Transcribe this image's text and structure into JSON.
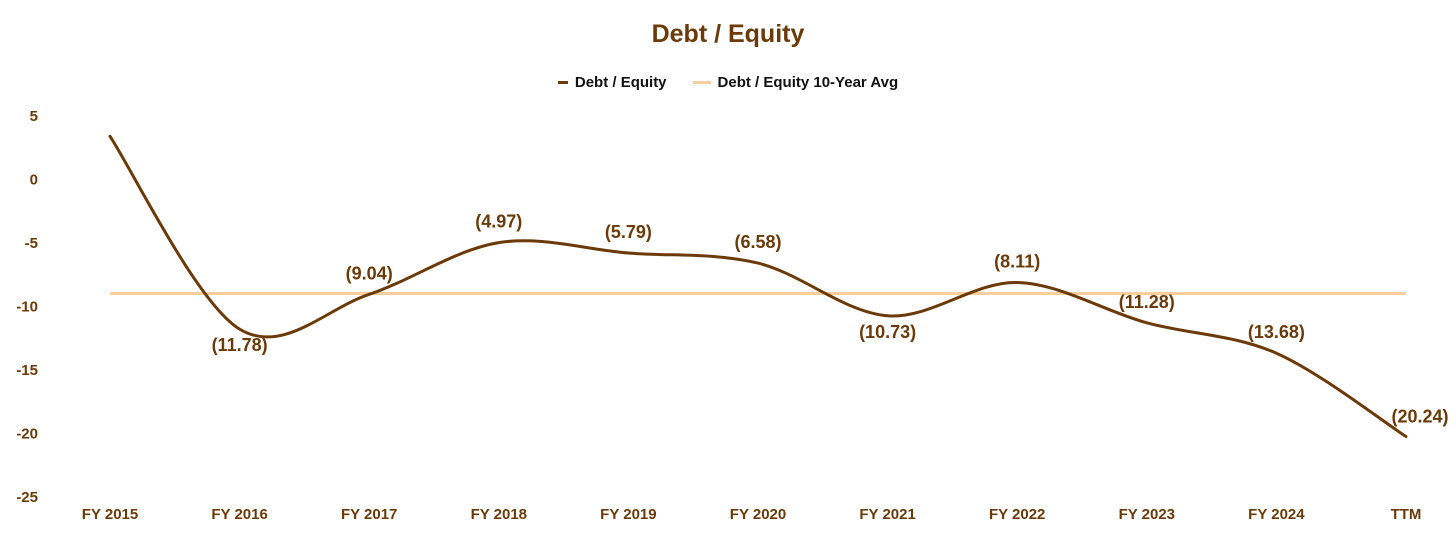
{
  "chart_data": {
    "type": "line",
    "title": "Debt / Equity",
    "categories": [
      "FY 2015",
      "FY 2016",
      "FY 2017",
      "FY 2018",
      "FY 2019",
      "FY 2020",
      "FY 2021",
      "FY 2022",
      "FY 2023",
      "FY 2024",
      "TTM"
    ],
    "series": [
      {
        "name": "Debt / Equity",
        "color": "#6b3a08",
        "values": [
          3.4,
          -11.78,
          -9.04,
          -4.97,
          -5.79,
          -6.58,
          -10.73,
          -8.11,
          -11.28,
          -13.68,
          -20.24
        ],
        "labels": [
          null,
          "(11.78)",
          "(9.04)",
          "(4.97)",
          "(5.79)",
          "(6.58)",
          "(10.73)",
          "(8.11)",
          "(11.28)",
          "(13.68)",
          "(20.24)"
        ]
      },
      {
        "name": "Debt / Equity 10-Year Avg",
        "color": "#f6cf9c",
        "values": [
          -8.98,
          -8.98,
          -8.98,
          -8.98,
          -8.98,
          -8.98,
          -8.98,
          -8.98,
          -8.98,
          -8.98,
          -8.98
        ]
      }
    ],
    "yticks": [
      "5",
      "0",
      "-5",
      "-10",
      "-15",
      "-20",
      "-25"
    ],
    "ylim": [
      -25,
      5
    ],
    "grid": false,
    "legend_position": "top-center"
  }
}
